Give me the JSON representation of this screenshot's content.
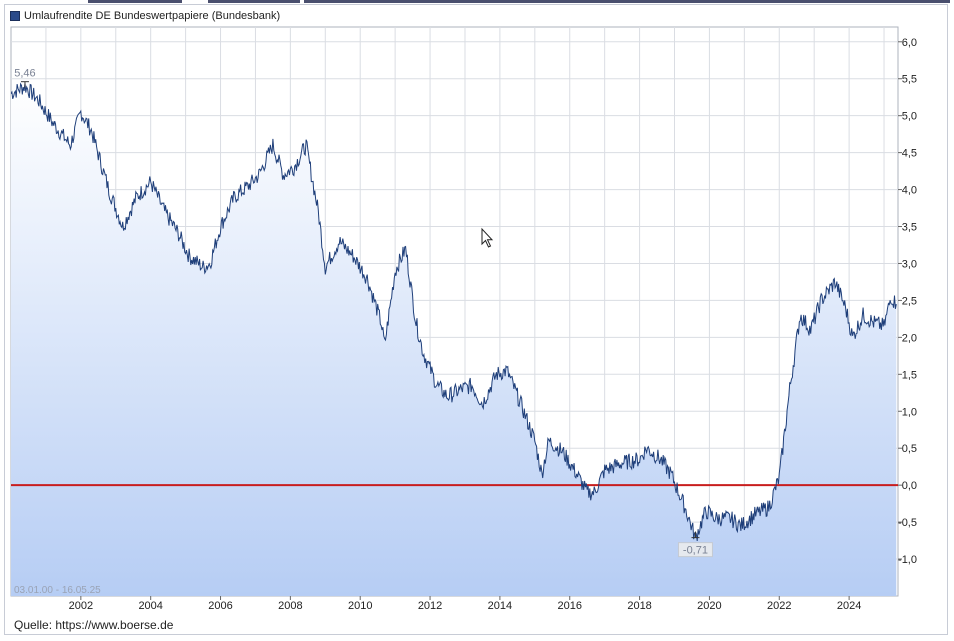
{
  "legend": {
    "label": "Umlaufrendite DE Bundeswertpapiere (Bundesbank)",
    "swatch_color": "#2a4a8a"
  },
  "source": "Quelle: https://www.boerse.de",
  "period": "03.01.00 - 16.05.25",
  "colors": {
    "line": "#1f3f7a",
    "zero_line": "#c81e1e",
    "area_top": "#ffffff",
    "area_bottom": "#b6cdf4",
    "grid": "#dadde3"
  },
  "chart_data": {
    "type": "area",
    "title": "Umlaufrendite DE Bundeswertpapiere (Bundesbank)",
    "xlabel": "",
    "ylabel": "",
    "grid": true,
    "y_axis_position": "right",
    "xlim": [
      2000.0,
      2025.4
    ],
    "ylim": [
      -1.5,
      6.2
    ],
    "x_ticks": [
      "2002",
      "2004",
      "2006",
      "2008",
      "2010",
      "2012",
      "2014",
      "2016",
      "2018",
      "2020",
      "2022",
      "2024"
    ],
    "y_ticks": [
      "6,0",
      "5,5",
      "5,0",
      "4,5",
      "4,0",
      "3,5",
      "3,0",
      "2,5",
      "2,0",
      "1,5",
      "1,0",
      "0,5",
      "0,0",
      "-0,5",
      "-1,0"
    ],
    "reference_line": {
      "y": 0.0,
      "label": ""
    },
    "annotations": [
      {
        "label": "5,46",
        "x": 2000.4,
        "y": 5.46,
        "kind": "max"
      },
      {
        "label": "-0,71",
        "x": 2019.6,
        "y": -0.71,
        "kind": "min"
      }
    ],
    "series": [
      {
        "name": "Umlaufrendite DE Bundeswertpapiere (Bundesbank)",
        "x": [
          2000.0,
          2000.4,
          2000.8,
          2001.2,
          2001.7,
          2002.0,
          2002.3,
          2002.8,
          2003.2,
          2003.6,
          2004.0,
          2004.4,
          2004.8,
          2005.1,
          2005.5,
          2005.7,
          2006.0,
          2006.4,
          2006.8,
          2007.1,
          2007.5,
          2007.8,
          2008.1,
          2008.45,
          2008.8,
          2009.0,
          2009.4,
          2009.8,
          2010.2,
          2010.6,
          2010.7,
          2011.0,
          2011.3,
          2011.6,
          2011.8,
          2012.2,
          2012.5,
          2012.9,
          2013.2,
          2013.5,
          2013.9,
          2014.2,
          2014.6,
          2015.0,
          2015.2,
          2015.4,
          2015.8,
          2016.2,
          2016.5,
          2016.7,
          2017.0,
          2017.5,
          2018.0,
          2018.2,
          2018.6,
          2018.9,
          2019.3,
          2019.6,
          2019.9,
          2020.2,
          2020.6,
          2020.9,
          2021.3,
          2021.7,
          2022.0,
          2022.3,
          2022.6,
          2022.9,
          2023.2,
          2023.6,
          2023.9,
          2024.1,
          2024.4,
          2024.7,
          2025.0,
          2025.2,
          2025.35
        ],
        "values": [
          5.3,
          5.4,
          5.2,
          4.9,
          4.6,
          5.05,
          4.8,
          4.0,
          3.5,
          3.9,
          4.1,
          3.7,
          3.4,
          3.1,
          2.95,
          3.0,
          3.5,
          3.9,
          4.05,
          4.2,
          4.6,
          4.2,
          4.3,
          4.6,
          3.7,
          2.95,
          3.3,
          3.1,
          2.8,
          2.2,
          1.9,
          2.9,
          3.2,
          2.2,
          1.8,
          1.35,
          1.2,
          1.3,
          1.35,
          1.1,
          1.5,
          1.55,
          1.1,
          0.6,
          0.15,
          0.6,
          0.45,
          0.15,
          -0.1,
          -0.1,
          0.2,
          0.3,
          0.35,
          0.5,
          0.35,
          0.15,
          -0.3,
          -0.71,
          -0.35,
          -0.45,
          -0.45,
          -0.55,
          -0.4,
          -0.3,
          0.1,
          1.3,
          2.3,
          2.1,
          2.5,
          2.75,
          2.4,
          2.0,
          2.3,
          2.2,
          2.15,
          2.55,
          2.45
        ]
      }
    ]
  }
}
